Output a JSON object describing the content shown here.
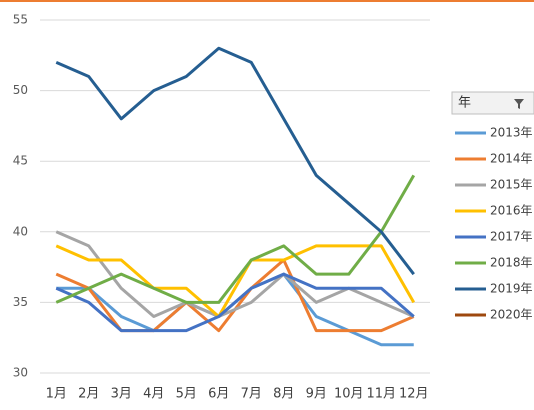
{
  "chart_data": {
    "type": "line",
    "categories": [
      "1月",
      "2月",
      "3月",
      "4月",
      "5月",
      "6月",
      "7月",
      "8月",
      "9月",
      "10月",
      "11月",
      "12月"
    ],
    "ylim": [
      30,
      55
    ],
    "yticks": [
      30,
      35,
      40,
      45,
      50,
      55
    ],
    "grid": true,
    "legend_title": "年",
    "legend": "right",
    "series": [
      {
        "name": "2013年",
        "color": "#5b9bd5",
        "values": [
          36,
          36,
          34,
          33,
          35,
          34,
          36,
          37,
          34,
          33,
          32,
          32
        ]
      },
      {
        "name": "2014年",
        "color": "#ed7d31",
        "values": [
          37,
          36,
          33,
          33,
          35,
          33,
          36,
          38,
          33,
          33,
          33,
          34
        ]
      },
      {
        "name": "2015年",
        "color": "#a5a5a5",
        "values": [
          40,
          39,
          36,
          34,
          35,
          34,
          35,
          37,
          35,
          36,
          35,
          34
        ]
      },
      {
        "name": "2016年",
        "color": "#ffc000",
        "values": [
          39,
          38,
          38,
          36,
          36,
          34,
          38,
          38,
          39,
          39,
          39,
          35
        ]
      },
      {
        "name": "2017年",
        "color": "#4472c4",
        "values": [
          36,
          35,
          33,
          33,
          33,
          34,
          36,
          37,
          36,
          36,
          36,
          34
        ]
      },
      {
        "name": "2018年",
        "color": "#70ad47",
        "values": [
          35,
          36,
          37,
          36,
          35,
          35,
          38,
          39,
          37,
          37,
          40,
          44
        ]
      },
      {
        "name": "2019年",
        "color": "#255e91",
        "values": [
          52,
          51,
          48,
          50,
          51,
          53,
          52,
          48,
          44,
          42,
          40,
          37
        ]
      },
      {
        "name": "2020年",
        "color": "#9e480e",
        "values": [
          null,
          null,
          null,
          null,
          null,
          null,
          null,
          null,
          null,
          null,
          null,
          null
        ]
      }
    ]
  }
}
